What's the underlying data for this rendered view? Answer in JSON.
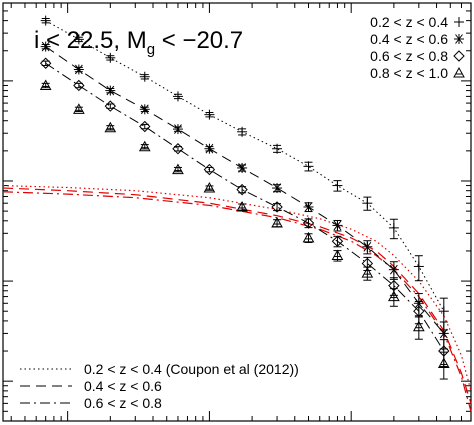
{
  "chart_data": {
    "type": "scatter",
    "title": "i < 22.5, M_g < −20.7",
    "title_parts": {
      "main": "i < 22.5, M",
      "sub": "g",
      "tail": " < −20.7"
    },
    "xscale": "log",
    "yscale": "log",
    "xlim": [
      0.00035,
      0.7
    ],
    "ylim": [
      0.004,
      60
    ],
    "tick_labels_shown": false,
    "series": [
      {
        "name": "0.2 < z < 0.4",
        "marker": "plus",
        "x": [
          0.0007,
          0.0012,
          0.002,
          0.0035,
          0.006,
          0.01,
          0.017,
          0.03,
          0.05,
          0.08,
          0.13,
          0.2,
          0.3,
          0.45
        ],
        "y": [
          40,
          26,
          17,
          11,
          7,
          4.6,
          3.1,
          2.1,
          1.4,
          0.9,
          0.6,
          0.34,
          0.14,
          0.05
        ],
        "err": [
          0.05,
          0.05,
          0.05,
          0.05,
          0.05,
          0.05,
          0.07,
          0.08,
          0.1,
          0.12,
          0.15,
          0.22,
          0.28,
          0.35
        ]
      },
      {
        "name": "0.4 < z < 0.6",
        "marker": "asterisk",
        "x": [
          0.0007,
          0.0012,
          0.002,
          0.0035,
          0.006,
          0.01,
          0.017,
          0.03,
          0.05,
          0.08,
          0.13,
          0.2,
          0.3,
          0.45
        ],
        "y": [
          22,
          13,
          8,
          5.2,
          3.3,
          2.1,
          1.35,
          0.85,
          0.55,
          0.36,
          0.22,
          0.13,
          0.06,
          0.03
        ],
        "err": [
          0.05,
          0.05,
          0.05,
          0.05,
          0.05,
          0.05,
          0.07,
          0.08,
          0.1,
          0.12,
          0.15,
          0.2,
          0.25,
          0.3
        ]
      },
      {
        "name": "0.6 < z < 0.8",
        "marker": "diamond",
        "x": [
          0.0007,
          0.0012,
          0.002,
          0.0035,
          0.006,
          0.01,
          0.017,
          0.03,
          0.05,
          0.08,
          0.13,
          0.2,
          0.3,
          0.45
        ],
        "y": [
          15,
          9,
          5.6,
          3.5,
          2.1,
          1.3,
          0.82,
          0.55,
          0.38,
          0.25,
          0.15,
          0.09,
          0.05,
          0.02
        ],
        "err": [
          0.05,
          0.05,
          0.05,
          0.05,
          0.05,
          0.05,
          0.07,
          0.08,
          0.1,
          0.12,
          0.15,
          0.2,
          0.25,
          0.3
        ]
      },
      {
        "name": "0.8 < z < 1.0",
        "marker": "triangle",
        "x": [
          0.0007,
          0.0012,
          0.002,
          0.0035,
          0.006,
          0.01,
          0.017,
          0.03,
          0.05,
          0.08,
          0.13,
          0.2,
          0.3,
          0.45
        ],
        "y": [
          9,
          5.2,
          3.4,
          2.2,
          1.3,
          0.85,
          0.55,
          0.38,
          0.27,
          0.18,
          0.12,
          0.07,
          0.035,
          0.015
        ],
        "err": [
          0.05,
          0.05,
          0.05,
          0.05,
          0.05,
          0.05,
          0.07,
          0.08,
          0.1,
          0.12,
          0.15,
          0.2,
          0.25,
          0.3
        ]
      }
    ],
    "data_lines": [
      {
        "series": "0.2 < z < 0.4",
        "dash": "dotted"
      },
      {
        "series": "0.4 < z < 0.6",
        "dash": "dashed"
      },
      {
        "series": "0.6 < z < 0.8",
        "dash": "dashdot"
      }
    ],
    "model_curves": [
      {
        "label": "0.2 < z < 0.4 (Coupon et al (2012))",
        "dash": "dotted",
        "color": "#e00000",
        "x": [
          0.00035,
          0.001,
          0.003,
          0.01,
          0.03,
          0.06,
          0.1,
          0.15,
          0.2,
          0.3,
          0.45,
          0.6,
          0.7
        ],
        "y": [
          0.9,
          0.86,
          0.8,
          0.68,
          0.52,
          0.42,
          0.33,
          0.25,
          0.18,
          0.1,
          0.045,
          0.018,
          0.008
        ]
      },
      {
        "label": "0.4 < z < 0.6",
        "dash": "dashed",
        "color": "#e00000",
        "x": [
          0.00035,
          0.001,
          0.003,
          0.01,
          0.03,
          0.06,
          0.1,
          0.15,
          0.2,
          0.3,
          0.45,
          0.6,
          0.7
        ],
        "y": [
          0.85,
          0.8,
          0.73,
          0.6,
          0.45,
          0.35,
          0.27,
          0.2,
          0.14,
          0.075,
          0.032,
          0.012,
          0.006
        ]
      },
      {
        "label": "0.6 < z < 0.8",
        "dash": "dashdot",
        "color": "#e00000",
        "x": [
          0.00035,
          0.001,
          0.003,
          0.01,
          0.03,
          0.06,
          0.1,
          0.15,
          0.2,
          0.3,
          0.45,
          0.6,
          0.7
        ],
        "y": [
          0.78,
          0.74,
          0.68,
          0.57,
          0.43,
          0.33,
          0.25,
          0.18,
          0.13,
          0.07,
          0.03,
          0.011,
          0.005
        ]
      }
    ],
    "legend_top": {
      "placement": "top-right",
      "entries": [
        {
          "label": "0.2 < z < 0.4",
          "marker": "plus"
        },
        {
          "label": "0.4 < z < 0.6",
          "marker": "asterisk"
        },
        {
          "label": "0.6 < z < 0.8",
          "marker": "diamond"
        },
        {
          "label": "0.8 < z < 1.0",
          "marker": "triangle"
        }
      ]
    },
    "legend_bottom": {
      "placement": "bottom-left",
      "entries": [
        {
          "label": "0.2 < z < 0.4 (Coupon et al (2012))",
          "dash": "dotted"
        },
        {
          "label": "0.4 < z < 0.6",
          "dash": "dashed"
        },
        {
          "label": "0.6 < z < 0.8",
          "dash": "dashdot"
        }
      ]
    }
  }
}
